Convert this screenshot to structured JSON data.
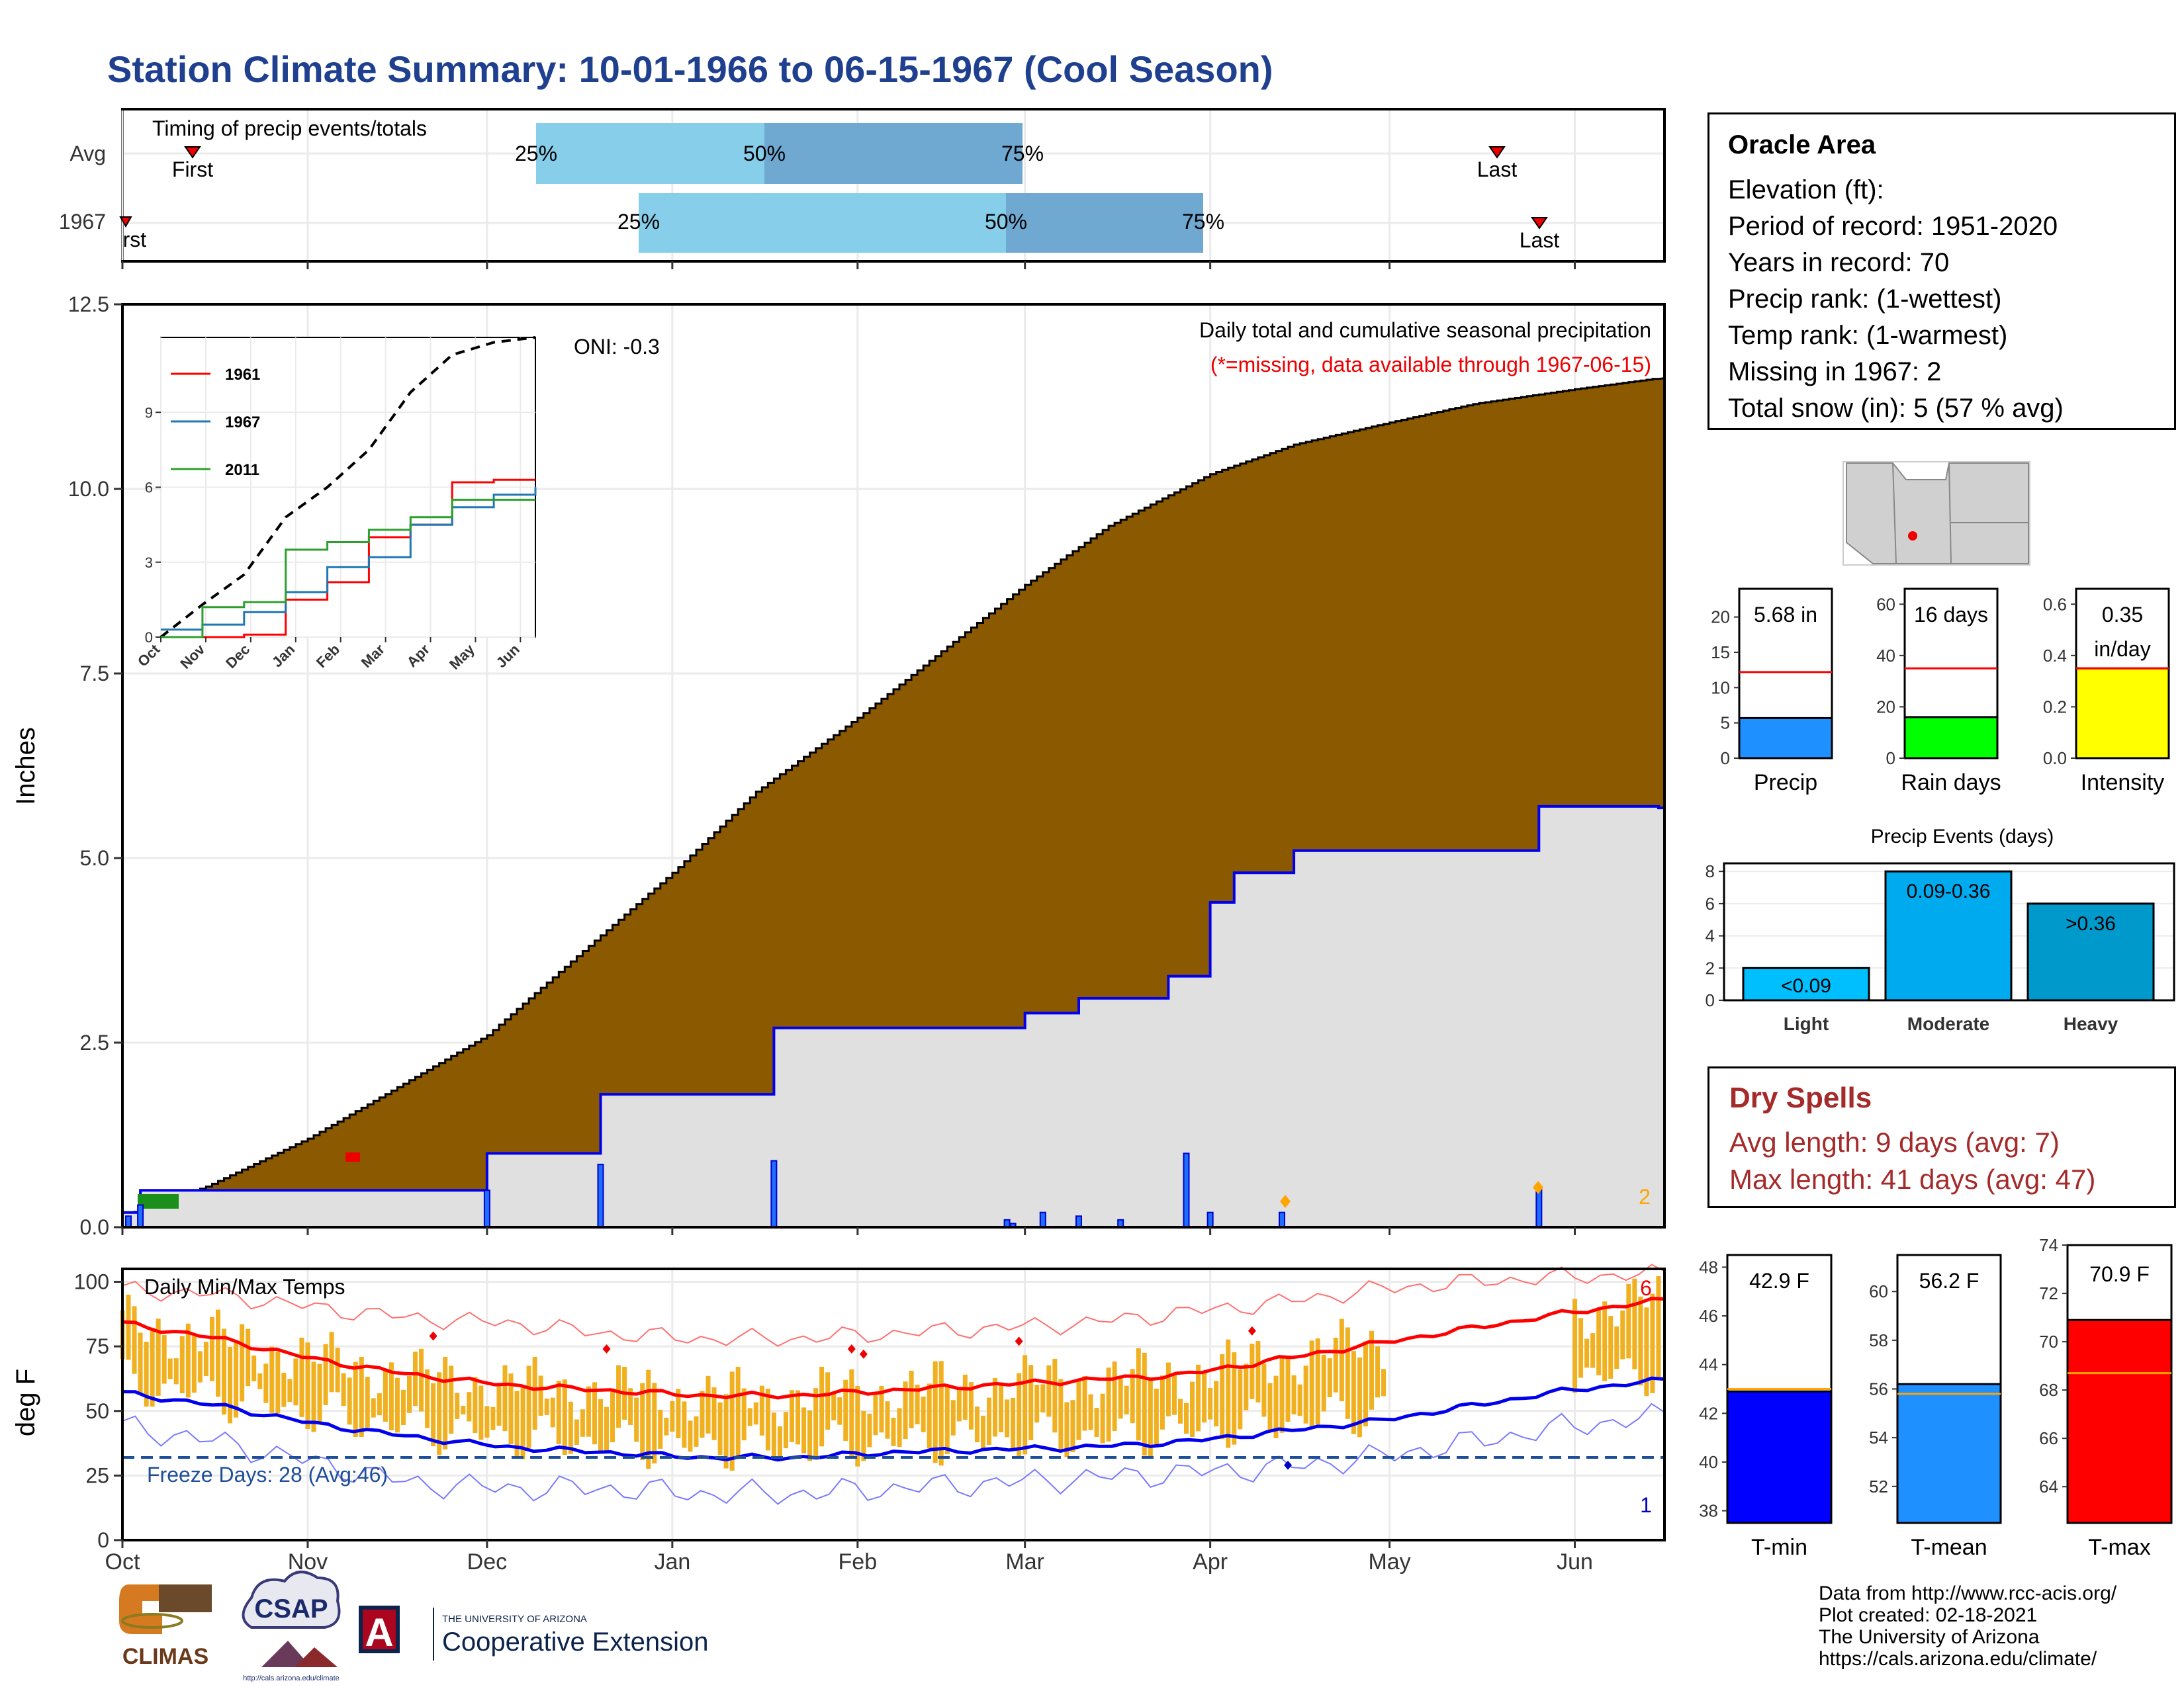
{
  "title": "Station Climate Summary: 10-01-1966 to 06-15-1967 (Cool Season)",
  "timing": {
    "title": "Timing of precip events/totals",
    "rows": [
      {
        "label": "Avg",
        "first": "First",
        "last": "Last",
        "p25": "25%",
        "p50": "50%",
        "p75": "75%"
      },
      {
        "label": "1967",
        "first": "First",
        "last": "Last",
        "p25": "25%",
        "p50": "50%",
        "p75": "75%"
      }
    ]
  },
  "station": {
    "name": "Oracle Area",
    "lines": [
      "Elevation (ft):",
      "Period of record: 1951-2020",
      "Years in record: 70",
      "Precip rank:  (1-wettest)",
      "Temp rank:  (1-warmest)",
      "Missing in 1967: 2",
      "Total snow (in): 5 (57 % avg)"
    ]
  },
  "dry_spells": {
    "title": "Dry Spells",
    "avg": "Avg length: 9 days (avg: 7)",
    "max": "Max length: 41 days (avg: 47)"
  },
  "credits": [
    "Data from http://www.rcc-acis.org/",
    "Plot created: 02-18-2021",
    "The University of Arizona",
    "https://cals.arizona.edu/climate/"
  ],
  "logos": {
    "climas": "CLIMAS",
    "csap": "CSAP",
    "csap_url": "http://cals.arizona.edu/climate",
    "ua_top": "THE UNIVERSITY OF ARIZONA",
    "ua_bottom": "Cooperative Extension",
    "ua_letter": "A"
  },
  "colors": {
    "cumulative": "#8b5a00",
    "cum_1967": "#0000ff",
    "tmax": "#ff0000",
    "tmin": "#0000ff",
    "temp_bar": "#f0b020",
    "freeze_line": "#1f4e99"
  },
  "chart_data": [
    {
      "type": "line",
      "name": "main-precip",
      "annotation_title": "Daily total and cumulative seasonal precipitation",
      "annotation_missing": "(*=missing, data available through 1967-06-15)",
      "oni": "ONI: -0.3",
      "ylabel": "Inches",
      "ylim": [
        0,
        12.5
      ],
      "yticks": [
        "0.0",
        "2.5",
        "5.0",
        "7.5",
        "10.0",
        "12.5"
      ],
      "xticks": [
        "Oct",
        "Nov",
        "Dec",
        "Jan",
        "Feb",
        "Mar",
        "Apr",
        "May",
        "Jun"
      ],
      "missing_count": "2",
      "avg_cumulative": {
        "x": [
          "10-01",
          "10-15",
          "11-01",
          "11-15",
          "12-01",
          "12-15",
          "01-01",
          "01-15",
          "02-01",
          "02-15",
          "03-01",
          "03-15",
          "04-01",
          "04-15",
          "05-01",
          "05-15",
          "06-01",
          "06-15"
        ],
        "y": [
          0.15,
          0.55,
          1.2,
          1.85,
          2.6,
          3.6,
          4.8,
          5.9,
          6.9,
          7.8,
          8.7,
          9.5,
          10.2,
          10.6,
          10.9,
          11.15,
          11.35,
          11.5
        ]
      },
      "series_1967_cumulative": {
        "x": [
          "10-01",
          "10-04",
          "10-08",
          "12-01",
          "12-20",
          "01-18",
          "03-01",
          "03-10",
          "03-25",
          "04-01",
          "04-05",
          "04-15",
          "05-26",
          "06-15"
        ],
        "y": [
          0.2,
          0.5,
          0.5,
          1.0,
          1.8,
          2.7,
          2.9,
          3.1,
          3.4,
          4.4,
          4.8,
          5.1,
          5.7,
          5.68
        ]
      },
      "daily_bars": {
        "x": [
          "10-02",
          "10-04",
          "12-01",
          "12-20",
          "01-18",
          "02-26",
          "02-27",
          "03-04",
          "03-10",
          "03-17",
          "03-28",
          "04-01",
          "04-13",
          "05-26"
        ],
        "y": [
          0.15,
          0.3,
          0.5,
          0.85,
          0.9,
          0.1,
          0.05,
          0.2,
          0.15,
          0.1,
          1.0,
          0.2,
          0.2,
          0.55
        ]
      }
    },
    {
      "type": "line",
      "name": "inset-cumulative",
      "xticks": [
        "Oct",
        "Nov",
        "Dec",
        "Jan",
        "Feb",
        "Mar",
        "Apr",
        "May",
        "Jun"
      ],
      "yticks": [
        "0",
        "3",
        "6",
        "9"
      ],
      "ylim": [
        0,
        12
      ],
      "series": [
        {
          "name": "1961",
          "values": [
            0,
            0,
            0.1,
            1.5,
            2.2,
            4.0,
            4.5,
            6.2,
            6.3,
            6.3
          ]
        },
        {
          "name": "1967",
          "values": [
            0.3,
            0.5,
            1.0,
            1.8,
            2.8,
            3.2,
            4.5,
            5.2,
            5.7,
            6.0
          ]
        },
        {
          "name": "2011",
          "values": [
            0,
            1.2,
            1.4,
            3.5,
            3.8,
            4.3,
            4.8,
            5.5,
            5.5,
            5.5
          ]
        }
      ],
      "avg": [
        0,
        1.3,
        2.5,
        4.8,
        6.0,
        7.5,
        9.8,
        11.3,
        11.8,
        12.0
      ]
    },
    {
      "type": "line",
      "name": "daily-temps",
      "title": "Daily Min/Max Temps",
      "ylabel": "deg F",
      "ylim": [
        0,
        105
      ],
      "yticks": [
        "0",
        "25",
        "50",
        "75",
        "100"
      ],
      "xticks": [
        "Oct",
        "Nov",
        "Dec",
        "Jan",
        "Feb",
        "Mar",
        "Apr",
        "May",
        "Jun"
      ],
      "freeze_label": "Freeze Days: 28 (Avg:46)",
      "freeze_level": 32,
      "record_high_count": "6",
      "record_low_count": "1",
      "avg_tmax": [
        84,
        78,
        70,
        64,
        60,
        58,
        56,
        56,
        58,
        60,
        62,
        64,
        70,
        76,
        82,
        88,
        93
      ],
      "avg_tmin": [
        57,
        52,
        45,
        40,
        36,
        34,
        32,
        32,
        34,
        35,
        36,
        38,
        42,
        46,
        52,
        58,
        62
      ],
      "record_high": [
        97,
        95,
        90,
        86,
        84,
        80,
        78,
        78,
        80,
        82,
        84,
        88,
        92,
        97,
        100,
        102,
        103
      ],
      "record_low": [
        44,
        38,
        30,
        22,
        20,
        20,
        18,
        18,
        20,
        22,
        24,
        26,
        28,
        32,
        38,
        44,
        48
      ]
    },
    {
      "type": "bar",
      "name": "precip-total",
      "categories": [
        "Precip"
      ],
      "values": [
        5.68
      ],
      "label": "5.68 in",
      "avg": 12.2,
      "ylim": [
        0,
        24
      ],
      "yticks": [
        "0",
        "5",
        "10",
        "15",
        "20"
      ]
    },
    {
      "type": "bar",
      "name": "rain-days",
      "categories": [
        "Rain days"
      ],
      "values": [
        16
      ],
      "label": "16 days",
      "avg": 35,
      "ylim": [
        0,
        66
      ],
      "yticks": [
        "0",
        "20",
        "40",
        "60"
      ]
    },
    {
      "type": "bar",
      "name": "intensity",
      "categories": [
        "Intensity"
      ],
      "values": [
        0.35
      ],
      "label": "0.35",
      "label2": "in/day",
      "avg": 0.35,
      "ylim": [
        0,
        0.66
      ],
      "yticks": [
        "0.0",
        "0.2",
        "0.4",
        "0.6"
      ]
    },
    {
      "type": "bar",
      "name": "precip-events",
      "title": "Precip Events (days)",
      "categories": [
        "Light",
        "Moderate",
        "Heavy"
      ],
      "bar_labels": [
        "<0.09",
        "0.09-0.36",
        ">0.36"
      ],
      "values": [
        2,
        8,
        6
      ],
      "ylim": [
        0,
        8.5
      ],
      "yticks": [
        "0",
        "2",
        "4",
        "6",
        "8"
      ]
    },
    {
      "type": "bar",
      "name": "t-min",
      "categories": [
        "T-min"
      ],
      "values": [
        42.9
      ],
      "label": "42.9 F",
      "avg": 43.0,
      "ylim": [
        37.5,
        48.5
      ],
      "yticks": [
        "38",
        "40",
        "42",
        "44",
        "46",
        "48"
      ]
    },
    {
      "type": "bar",
      "name": "t-mean",
      "categories": [
        "T-mean"
      ],
      "values": [
        56.2
      ],
      "label": "56.2 F",
      "avg": 55.8,
      "ylim": [
        50.5,
        61.5
      ],
      "yticks": [
        "52",
        "54",
        "56",
        "58",
        "60"
      ]
    },
    {
      "type": "bar",
      "name": "t-max",
      "categories": [
        "T-max"
      ],
      "values": [
        70.9
      ],
      "label": "70.9 F",
      "avg": 68.7,
      "ylim": [
        62.5,
        74
      ],
      "yticks": [
        "64",
        "66",
        "68",
        "70",
        "72",
        "74"
      ]
    }
  ]
}
